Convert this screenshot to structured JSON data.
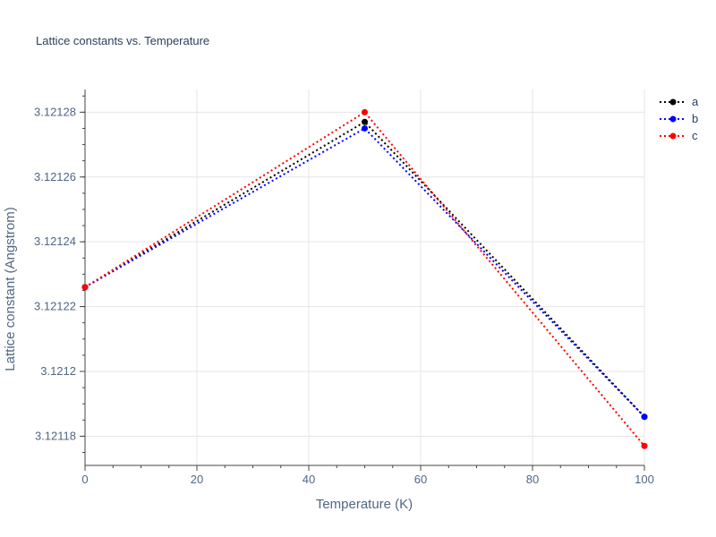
{
  "chart_data": {
    "type": "line",
    "title": "Lattice constants vs. Temperature",
    "xlabel": "Temperature (K)",
    "ylabel": "Lattice constant (Angstrom)",
    "x": [
      0,
      50,
      100
    ],
    "xlim": [
      0,
      100
    ],
    "ylim": [
      3.121171,
      3.121287
    ],
    "x_ticks": [
      0,
      20,
      40,
      60,
      80,
      100
    ],
    "x_tick_labels": [
      "0",
      "20",
      "40",
      "60",
      "80",
      "100"
    ],
    "y_ticks": [
      3.12118,
      3.1212,
      3.12122,
      3.12124,
      3.12126,
      3.12128
    ],
    "y_tick_labels": [
      "3.12118",
      "3.1212",
      "3.12122",
      "3.12124",
      "3.12126",
      "3.12128"
    ],
    "grid": true,
    "legend_position": "top-right",
    "line_style": "dotted",
    "series": [
      {
        "name": "a",
        "color": "#000000",
        "values": [
          3.121226,
          3.121277,
          3.121186
        ]
      },
      {
        "name": "b",
        "color": "#0000ff",
        "values": [
          3.121226,
          3.121275,
          3.121186
        ]
      },
      {
        "name": "c",
        "color": "#ff0000",
        "values": [
          3.121226,
          3.12128,
          3.121177
        ]
      }
    ]
  }
}
